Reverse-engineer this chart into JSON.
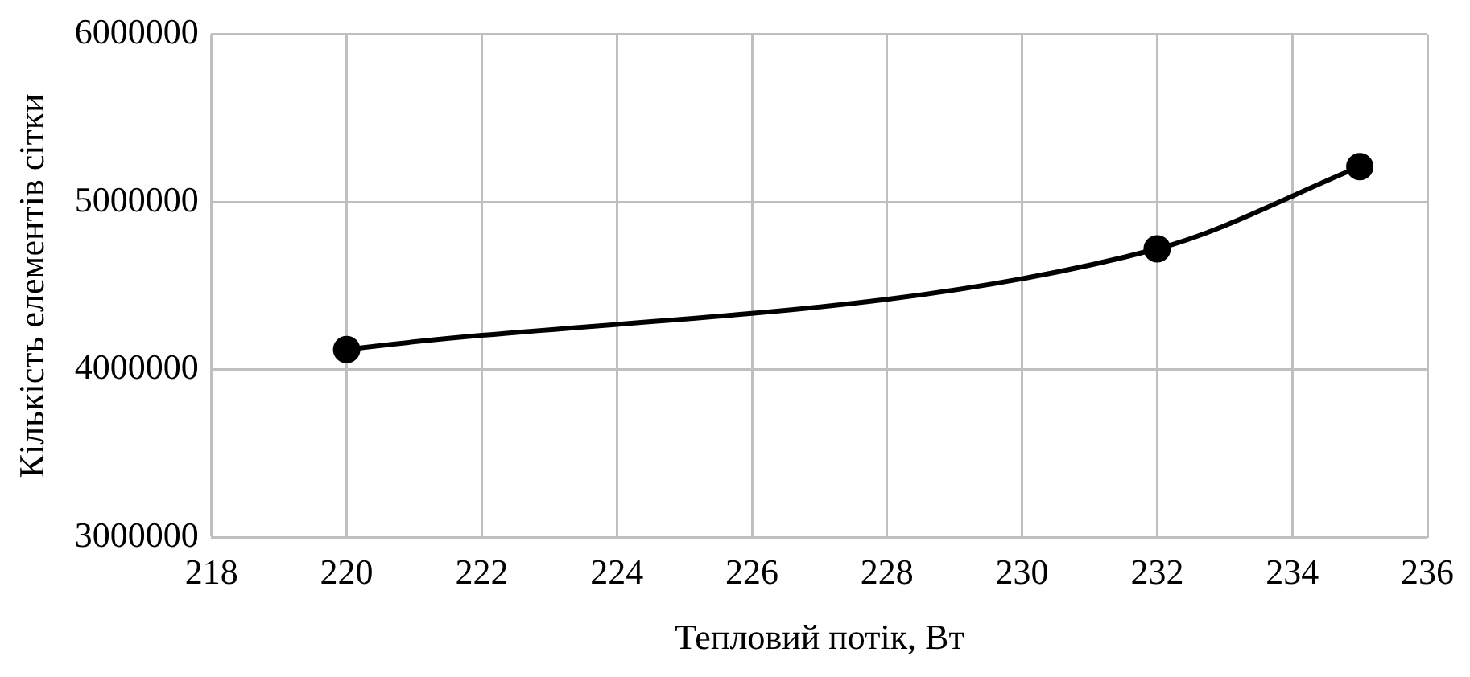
{
  "chart_data": {
    "type": "line",
    "xlabel": "Тепловий потік, Вт",
    "ylabel": "Кількість елементів сітки",
    "x": [
      220,
      232,
      235
    ],
    "series": [
      {
        "color": "#000000",
        "values": [
          4120000,
          4720000,
          5210000
        ]
      }
    ],
    "xlim": [
      218,
      236
    ],
    "xticks": [
      218,
      220,
      222,
      224,
      226,
      228,
      230,
      232,
      234,
      236
    ],
    "ylim": [
      3000000,
      6000000
    ],
    "yticks": [
      3000000,
      4000000,
      5000000,
      6000000
    ],
    "grid": true,
    "legend": false,
    "marker": "circle",
    "line_style": "solid"
  }
}
